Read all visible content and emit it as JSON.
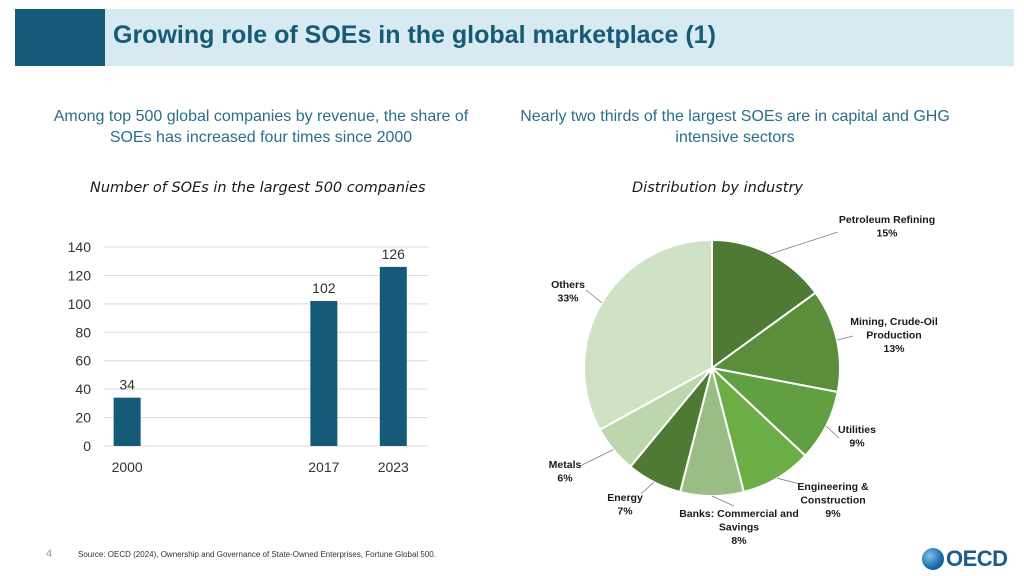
{
  "header": {
    "title": "Growing role of SOEs in the global marketplace (1)"
  },
  "left_subheading": "Among top 500 global companies by revenue, the share of SOEs has increased four times since 2000",
  "right_subheading": "Nearly two thirds of the largest SOEs are in capital and GHG intensive sectors",
  "chart_data": [
    {
      "type": "bar",
      "title": "Number of SOEs in the largest 500 companies",
      "categories": [
        "2000",
        "2017",
        "2023"
      ],
      "values": [
        34,
        102,
        126
      ],
      "data_labels": [
        "34",
        "102",
        "126"
      ],
      "ylim": [
        0,
        140
      ],
      "yticks": [
        "0",
        "20",
        "40",
        "60",
        "80",
        "100",
        "120",
        "140"
      ],
      "grid": true,
      "color": "#155a77"
    },
    {
      "type": "pie",
      "title": "Distribution by industry",
      "slices": [
        {
          "label": "Petroleum Refining",
          "pct_label": "15%",
          "value": 15,
          "color": "#4e7a34"
        },
        {
          "label": "Mining, Crude-Oil Production",
          "pct_label": "13%",
          "value": 13,
          "color": "#5a8e3a"
        },
        {
          "label": "Utilities",
          "pct_label": "9%",
          "value": 9,
          "color": "#60a043"
        },
        {
          "label": "Engineering & Construction",
          "pct_label": "9%",
          "value": 9,
          "color": "#6aae45"
        },
        {
          "label": "Banks: Commercial and Savings",
          "pct_label": "8%",
          "value": 8,
          "color": "#99bd84"
        },
        {
          "label": "Energy",
          "pct_label": "7%",
          "value": 7,
          "color": "#4e7a34"
        },
        {
          "label": "Metals",
          "pct_label": "6%",
          "value": 6,
          "color": "#bcd6ad"
        },
        {
          "label": "Others",
          "pct_label": "33%",
          "value": 33,
          "color": "#cfe2c5"
        }
      ]
    }
  ],
  "footer": {
    "page_number": "4",
    "source": "Source: OECD (2024), Ownership and Governance of State-Owned Enterprises, Fortune Global 500.",
    "logo_text": "OECD"
  }
}
